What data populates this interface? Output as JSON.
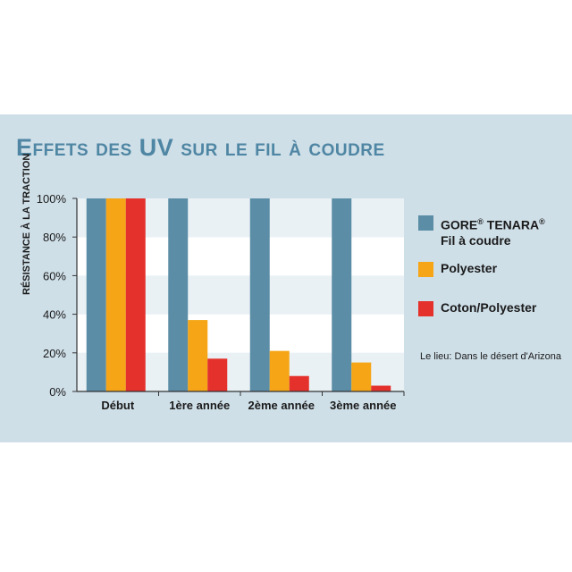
{
  "title": "Effets des UV sur le fil à coudre",
  "note": "Le lieu: Dans le désert d'Arizona",
  "legend": {
    "gore_line1": "GORE",
    "gore_sup1": "®",
    "gore_name": " TENARA",
    "gore_sup2": "®",
    "gore_line2": "Fil à coudre",
    "polyester": "Polyester",
    "coton": "Coton/Polyester"
  },
  "colors": {
    "gore": "#5b8ea6",
    "polyester": "#f5a515",
    "coton": "#e4312b",
    "background": "#cfdfe8"
  },
  "chart_data": {
    "type": "bar",
    "title": "Effets des UV sur le fil à coudre",
    "xlabel": "",
    "ylabel": "Résistance à la traction",
    "categories": [
      "Début",
      "1ère année",
      "2ème année",
      "3ème année"
    ],
    "series": [
      {
        "name": "GORE® TENARA® Fil à coudre",
        "values": [
          100,
          100,
          100,
          100
        ]
      },
      {
        "name": "Polyester",
        "values": [
          100,
          37,
          21,
          15
        ]
      },
      {
        "name": "Coton/Polyester",
        "values": [
          100,
          17,
          8,
          3
        ]
      }
    ],
    "ylim": [
      0,
      100
    ],
    "yticks": [
      "0%",
      "20%",
      "40%",
      "60%",
      "80%",
      "100%"
    ],
    "legend_position": "right",
    "grid": true
  }
}
